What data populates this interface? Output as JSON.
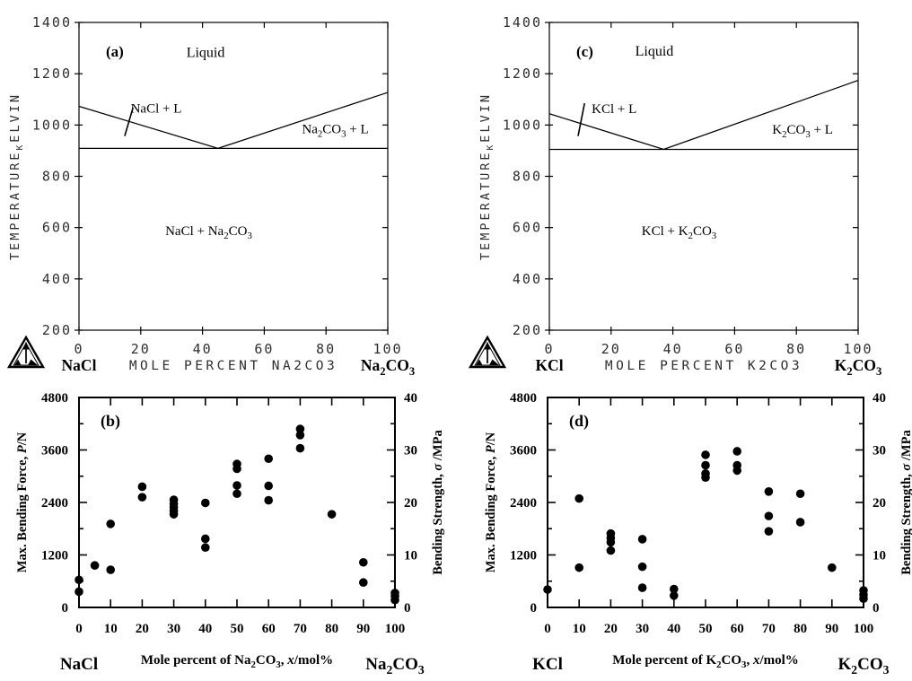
{
  "figure": {
    "panel_labels": [
      "(a)",
      "(b)",
      "(c)",
      "(d)"
    ],
    "background": "#ffffff",
    "ink_color": "#000000",
    "plot_label_color": "#2e2e2e",
    "logo_name": "thermo-calc-triangle"
  },
  "chart_data": [
    {
      "id": "a",
      "type": "line",
      "subtype": "phase-diagram",
      "panel_label": "(a)",
      "x_axis": {
        "title": "MOLE PERCENT NA2CO3",
        "min": 0,
        "max": 100,
        "major_step": 20,
        "tick_labels": [
          "0",
          "20",
          "40",
          "60",
          "80",
          "100"
        ],
        "left_end_label": "NaCl",
        "right_end_label": "Na_2CO_3"
      },
      "y_axis": {
        "title": "TEMPERATURE_KELVIN",
        "min": 200,
        "max": 1400,
        "major_step": 200,
        "tick_labels": [
          "200",
          "400",
          "600",
          "800",
          "1000",
          "1200",
          "1400"
        ]
      },
      "series": [
        {
          "name": "liquidus",
          "points": [
            [
              0,
              1073
            ],
            [
              45,
              909
            ],
            [
              100,
              1127
            ]
          ]
        },
        {
          "name": "eutectic-isotherm",
          "points": [
            [
              0,
              909
            ],
            [
              100,
              909
            ]
          ]
        }
      ],
      "eutectic": {
        "x": 45,
        "T": 909
      },
      "region_labels": [
        {
          "text": "Liquid",
          "x": 41,
          "y": 1283,
          "size": 16
        },
        {
          "text": "NaCl + L",
          "x": 25,
          "y": 1066,
          "size": 15
        },
        {
          "text": "Na_2CO_3 + L",
          "x": 83,
          "y": 985,
          "size": 15
        },
        {
          "text": "NaCl + Na_2CO_3",
          "x": 42,
          "y": 588,
          "size": 15
        }
      ],
      "tie_mark": [
        [
          17.5,
          1068
        ],
        [
          14.8,
          957
        ]
      ]
    },
    {
      "id": "b",
      "type": "scatter",
      "panel_label": "(b)",
      "x_axis": {
        "title": "Mole percent of Na_2CO_3, *x*/mol%",
        "min": 0,
        "max": 100,
        "major_step": 10,
        "tick_labels": [
          "0",
          "10",
          "20",
          "30",
          "40",
          "50",
          "60",
          "70",
          "80",
          "90",
          "100"
        ],
        "left_end_label": "NaCl",
        "right_end_label": "Na_2CO_3"
      },
      "y_left": {
        "title": "Max. Bending Force, *P*/N",
        "min": 0,
        "max": 4800,
        "major_step": 1200,
        "minor_step": 600,
        "tick_labels": [
          "0",
          "1200",
          "2400",
          "3600",
          "4800"
        ]
      },
      "y_right": {
        "title": "Bending Strength, *σ* /MPa",
        "min": 0,
        "max": 40,
        "major_step": 10,
        "minor_step": 5,
        "tick_labels": [
          "0",
          "10",
          "20",
          "30",
          "40"
        ]
      },
      "marker": {
        "shape": "circle",
        "color": "#000000"
      },
      "points": [
        [
          0,
          630
        ],
        [
          0,
          360
        ],
        [
          5,
          960
        ],
        [
          10,
          1910
        ],
        [
          10,
          860
        ],
        [
          20,
          2760
        ],
        [
          20,
          2520
        ],
        [
          30,
          2460
        ],
        [
          30,
          2370
        ],
        [
          30,
          2290
        ],
        [
          30,
          2210
        ],
        [
          30,
          2130
        ],
        [
          40,
          2390
        ],
        [
          40,
          1570
        ],
        [
          40,
          1370
        ],
        [
          50,
          3280
        ],
        [
          50,
          3170
        ],
        [
          50,
          2790
        ],
        [
          50,
          2600
        ],
        [
          60,
          3400
        ],
        [
          60,
          2780
        ],
        [
          60,
          2450
        ],
        [
          70,
          4080
        ],
        [
          70,
          3940
        ],
        [
          70,
          3640
        ],
        [
          80,
          2130
        ],
        [
          90,
          1030
        ],
        [
          90,
          570
        ],
        [
          100,
          330
        ],
        [
          100,
          260
        ],
        [
          100,
          170
        ]
      ]
    },
    {
      "id": "c",
      "type": "line",
      "subtype": "phase-diagram",
      "panel_label": "(c)",
      "x_axis": {
        "title": "MOLE PERCENT K2CO3",
        "min": 0,
        "max": 100,
        "major_step": 20,
        "tick_labels": [
          "0",
          "20",
          "40",
          "60",
          "80",
          "100"
        ],
        "left_end_label": "KCl",
        "right_end_label": "K_2CO_3"
      },
      "y_axis": {
        "title": "TEMPERATURE_KELVIN",
        "min": 200,
        "max": 1400,
        "major_step": 200,
        "tick_labels": [
          "200",
          "400",
          "600",
          "800",
          "1000",
          "1200",
          "1400"
        ]
      },
      "series": [
        {
          "name": "liquidus",
          "points": [
            [
              0,
              1044
            ],
            [
              37,
              905
            ],
            [
              100,
              1174
            ]
          ]
        },
        {
          "name": "eutectic-isotherm",
          "points": [
            [
              0,
              905
            ],
            [
              100,
              905
            ]
          ]
        }
      ],
      "eutectic": {
        "x": 37,
        "T": 905
      },
      "region_labels": [
        {
          "text": "Liquid",
          "x": 34,
          "y": 1288,
          "size": 16
        },
        {
          "text": "KCl + L",
          "x": 21,
          "y": 1065,
          "size": 15
        },
        {
          "text": "K_2CO_3 + L",
          "x": 82,
          "y": 983,
          "size": 15
        },
        {
          "text": "KCl + K_2CO_3",
          "x": 42,
          "y": 588,
          "size": 15
        }
      ],
      "tie_mark": [
        [
          11.4,
          1085
        ],
        [
          9.3,
          957
        ]
      ]
    },
    {
      "id": "d",
      "type": "scatter",
      "panel_label": "(d)",
      "x_axis": {
        "title": "Mole percent of K_2CO_3, *x*/mol%",
        "min": 0,
        "max": 100,
        "major_step": 10,
        "tick_labels": [
          "0",
          "10",
          "20",
          "30",
          "40",
          "50",
          "60",
          "70",
          "80",
          "90",
          "100"
        ],
        "left_end_label": "KCl",
        "right_end_label": "K_2CO_3"
      },
      "y_left": {
        "title": "Max. Bending Force, *P*/N",
        "min": 0,
        "max": 4800,
        "major_step": 1200,
        "minor_step": 600,
        "tick_labels": [
          "0",
          "1200",
          "2400",
          "3600",
          "4800"
        ]
      },
      "y_right": {
        "title": "Bending Strength, *σ* /MPa",
        "min": 0,
        "max": 40,
        "major_step": 10,
        "minor_step": 5,
        "tick_labels": [
          "0",
          "10",
          "20",
          "30",
          "40"
        ]
      },
      "marker": {
        "shape": "circle",
        "color": "#000000"
      },
      "points": [
        [
          0,
          410
        ],
        [
          10,
          2490
        ],
        [
          10,
          910
        ],
        [
          20,
          1690
        ],
        [
          20,
          1590
        ],
        [
          20,
          1490
        ],
        [
          20,
          1300
        ],
        [
          30,
          1560
        ],
        [
          30,
          930
        ],
        [
          30,
          450
        ],
        [
          40,
          420
        ],
        [
          40,
          270
        ],
        [
          50,
          3490
        ],
        [
          50,
          3250
        ],
        [
          50,
          3060
        ],
        [
          50,
          2970
        ],
        [
          60,
          3570
        ],
        [
          60,
          3250
        ],
        [
          60,
          3130
        ],
        [
          70,
          2650
        ],
        [
          70,
          2090
        ],
        [
          70,
          1740
        ],
        [
          80,
          2600
        ],
        [
          80,
          1950
        ],
        [
          90,
          910
        ],
        [
          100,
          390
        ],
        [
          100,
          290
        ],
        [
          100,
          200
        ]
      ]
    }
  ]
}
